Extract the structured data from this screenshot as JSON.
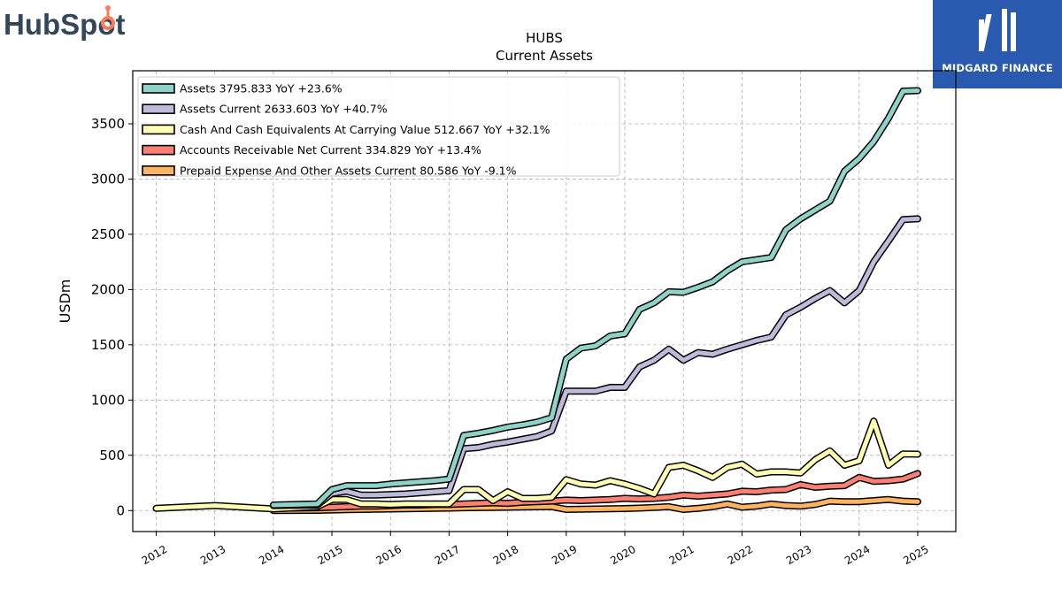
{
  "brand": {
    "left_logo_text": "HubSpot",
    "right_logo_text": "MIDGARD FINANCE",
    "hubspot_color": "#33475b",
    "hubspot_accent": "#ff7a59",
    "midgard_bg": "#2a59b0"
  },
  "chart_data": {
    "type": "line",
    "title": "HUBS",
    "subtitle": "Current  Assets",
    "ylabel": "USDm",
    "xlabel": "",
    "xlim": [
      2011.6,
      2025.65
    ],
    "ylim": [
      -190,
      3980
    ],
    "yticks": [
      0,
      500,
      1000,
      1500,
      2000,
      2500,
      3000,
      3500
    ],
    "xticks": [
      "2012",
      "2013",
      "2014",
      "2015",
      "2016",
      "2017",
      "2018",
      "2019",
      "2020",
      "2021",
      "2022",
      "2023",
      "2024",
      "2025"
    ],
    "grid": true,
    "legend_position": "top-left",
    "series": [
      {
        "name": "Assets",
        "legend": "Assets  3795.833 YoY +23.6%",
        "color": "#8dd3c7",
        "x": [
          2014.0,
          2014.75,
          2015.0,
          2015.25,
          2015.5,
          2015.75,
          2016.0,
          2016.25,
          2016.5,
          2016.75,
          2017.0,
          2017.25,
          2017.5,
          2017.75,
          2018.0,
          2018.25,
          2018.5,
          2018.75,
          2019.0,
          2019.25,
          2019.5,
          2019.75,
          2020.0,
          2020.25,
          2020.5,
          2020.75,
          2021.0,
          2021.25,
          2021.5,
          2021.75,
          2022.0,
          2022.25,
          2022.5,
          2022.75,
          2023.0,
          2023.25,
          2023.5,
          2023.75,
          2024.0,
          2024.25,
          2024.5,
          2024.75,
          2025.0
        ],
        "values": [
          50,
          60,
          190,
          225,
          225,
          225,
          240,
          250,
          260,
          270,
          285,
          680,
          700,
          725,
          755,
          775,
          800,
          840,
          1370,
          1470,
          1490,
          1580,
          1600,
          1820,
          1880,
          1980,
          1975,
          2020,
          2070,
          2170,
          2250,
          2270,
          2290,
          2540,
          2640,
          2720,
          2800,
          3070,
          3185,
          3340,
          3550,
          3795.833,
          3800
        ]
      },
      {
        "name": "Assets Current",
        "legend": "Assets Current  2633.603 YoY +40.7%",
        "color": "#bebada",
        "x": [
          2014.0,
          2014.75,
          2015.0,
          2015.25,
          2015.5,
          2015.75,
          2016.0,
          2016.25,
          2016.5,
          2016.75,
          2017.0,
          2017.25,
          2017.5,
          2017.75,
          2018.0,
          2018.25,
          2018.5,
          2018.75,
          2019.0,
          2019.25,
          2019.5,
          2019.75,
          2020.0,
          2020.25,
          2020.5,
          2020.75,
          2021.0,
          2021.25,
          2021.5,
          2021.75,
          2022.0,
          2022.25,
          2022.5,
          2022.75,
          2023.0,
          2023.25,
          2023.5,
          2023.75,
          2024.0,
          2024.25,
          2024.5,
          2024.75,
          2025.0
        ],
        "values": [
          45,
          50,
          155,
          175,
          140,
          140,
          145,
          150,
          160,
          170,
          180,
          560,
          570,
          600,
          620,
          645,
          670,
          720,
          1080,
          1080,
          1080,
          1115,
          1115,
          1300,
          1360,
          1460,
          1360,
          1430,
          1415,
          1460,
          1500,
          1540,
          1570,
          1770,
          1840,
          1920,
          1990,
          1880,
          1990,
          2250,
          2440,
          2633.603,
          2640
        ]
      },
      {
        "name": "Cash And Cash Equivalents At Carrying Value",
        "legend": "Cash And Cash Equivalents At Carrying Value  512.667 YoY +32.1%",
        "color": "#ffffb3",
        "x": [
          2012.0,
          2013.0,
          2014.0,
          2014.75,
          2015.0,
          2015.25,
          2015.5,
          2015.75,
          2016.0,
          2016.25,
          2016.5,
          2016.75,
          2017.0,
          2017.25,
          2017.5,
          2017.75,
          2018.0,
          2018.25,
          2018.5,
          2018.75,
          2019.0,
          2019.25,
          2019.5,
          2019.75,
          2020.0,
          2020.25,
          2020.5,
          2020.75,
          2021.0,
          2021.25,
          2021.5,
          2021.75,
          2022.0,
          2022.25,
          2022.5,
          2022.75,
          2023.0,
          2023.25,
          2023.5,
          2023.75,
          2024.0,
          2024.25,
          2024.5,
          2024.75,
          2025.0
        ],
        "values": [
          20,
          45,
          15,
          35,
          100,
          100,
          60,
          60,
          55,
          60,
          60,
          60,
          60,
          190,
          190,
          90,
          170,
          110,
          110,
          120,
          280,
          240,
          230,
          270,
          240,
          200,
          150,
          390,
          410,
          360,
          300,
          390,
          420,
          330,
          350,
          350,
          340,
          460,
          540,
          410,
          450,
          810,
          410,
          512.667,
          510
        ]
      },
      {
        "name": "Accounts Receivable Net Current",
        "legend": "Accounts Receivable Net Current  334.829 YoY +13.4%",
        "color": "#fb8072",
        "x": [
          2014.0,
          2014.75,
          2015.0,
          2015.25,
          2015.5,
          2015.75,
          2016.0,
          2016.25,
          2016.5,
          2016.75,
          2017.0,
          2017.25,
          2017.5,
          2017.75,
          2018.0,
          2018.25,
          2018.5,
          2018.75,
          2019.0,
          2019.25,
          2019.5,
          2019.75,
          2020.0,
          2020.25,
          2020.5,
          2020.75,
          2021.0,
          2021.25,
          2021.5,
          2021.75,
          2022.0,
          2022.25,
          2022.5,
          2022.75,
          2023.0,
          2023.25,
          2023.5,
          2023.75,
          2024.0,
          2024.25,
          2024.5,
          2024.75,
          2025.0
        ],
        "values": [
          20,
          25,
          30,
          35,
          40,
          40,
          45,
          50,
          50,
          55,
          55,
          60,
          65,
          70,
          65,
          75,
          80,
          85,
          95,
          90,
          95,
          100,
          110,
          105,
          110,
          120,
          140,
          130,
          140,
          150,
          175,
          170,
          185,
          190,
          235,
          210,
          220,
          225,
          300,
          265,
          270,
          285,
          334.829
        ]
      },
      {
        "name": "Prepaid Expense And Other Assets Current",
        "legend": "Prepaid Expense And Other Assets Current  80.586 YoY -9.1%",
        "color": "#fdb462",
        "x": [
          2014.0,
          2014.75,
          2015.0,
          2015.25,
          2015.5,
          2015.75,
          2016.0,
          2016.25,
          2016.5,
          2016.75,
          2017.0,
          2017.25,
          2017.5,
          2017.75,
          2018.0,
          2018.25,
          2018.5,
          2018.75,
          2019.0,
          2019.25,
          2019.5,
          2019.75,
          2020.0,
          2020.25,
          2020.5,
          2020.75,
          2021.0,
          2021.25,
          2021.5,
          2021.75,
          2022.0,
          2022.25,
          2022.5,
          2022.75,
          2023.0,
          2023.25,
          2023.5,
          2023.75,
          2024.0,
          2024.25,
          2024.5,
          2024.75,
          2025.0
        ],
        "values": [
          0,
          2,
          5,
          8,
          10,
          12,
          14,
          16,
          18,
          20,
          22,
          25,
          27,
          28,
          30,
          32,
          34,
          36,
          10,
          12,
          14,
          16,
          18,
          22,
          28,
          35,
          10,
          20,
          35,
          60,
          30,
          40,
          60,
          45,
          40,
          55,
          85,
          80,
          80,
          90,
          100,
          85,
          80.586
        ]
      }
    ]
  }
}
